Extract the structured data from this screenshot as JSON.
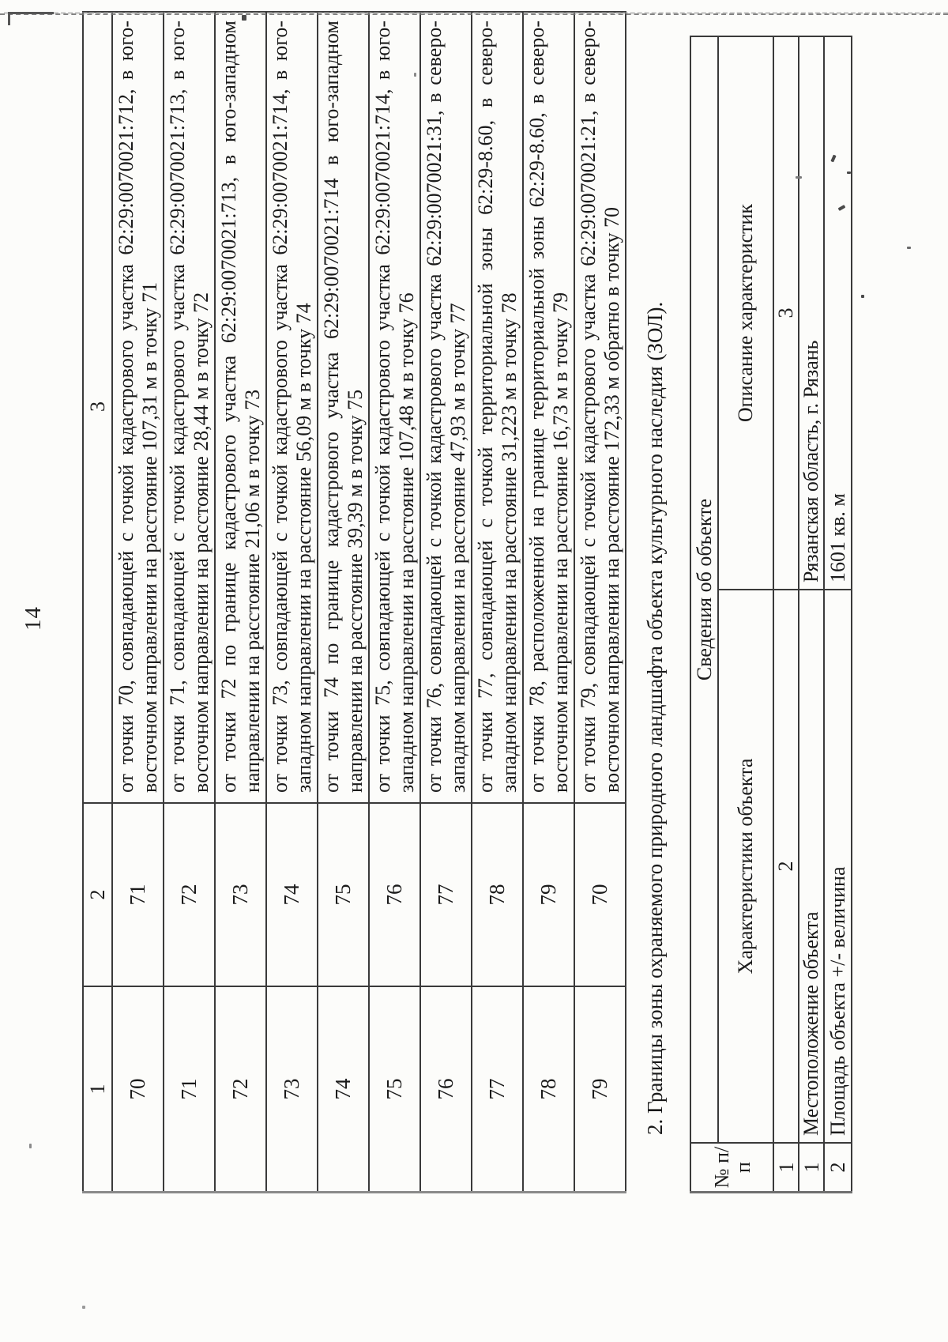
{
  "page": {
    "number": "14"
  },
  "colors": {
    "paper": "#fcfcfa",
    "ink": "#1b1b1b",
    "border": "#3a3a3a"
  },
  "main_table": {
    "headers": [
      "1",
      "2",
      "3"
    ],
    "rows": [
      {
        "point": "70",
        "to": "71",
        "desc": "от точки 70, совпадающей с точкой кадастрового участка 62:29:0070021:712, в юго-восточном направлении на расстояние 107,31 м в точку 71"
      },
      {
        "point": "71",
        "to": "72",
        "desc": "от точки 71, совпадающей с точкой кадастрового участка 62:29:0070021:713, в юго-восточном направлении на расстояние 28,44 м в точку 72"
      },
      {
        "point": "72",
        "to": "73",
        "desc": "от точки 72 по границе кадастрового участка 62:29:0070021:713, в юго-западном направлении на расстояние 21,06 м в точку 73"
      },
      {
        "point": "73",
        "to": "74",
        "desc": "от точки 73, совпадающей с точкой кадастрового участка 62:29:0070021:714, в юго-западном направлении на расстояние 56,09 м в точку 74"
      },
      {
        "point": "74",
        "to": "75",
        "desc": "от точки 74 по границе кадастрового участка 62:29:0070021:714 в юго-западном направлении на расстояние 39,39 м в точку 75"
      },
      {
        "point": "75",
        "to": "76",
        "desc": "от точки 75, совпадающей с точкой кадастрового участка 62:29:0070021:714, в юго-западном направлении на расстояние 107,48 м в точку 76"
      },
      {
        "point": "76",
        "to": "77",
        "desc": "от точки 76, совпадающей с точкой кадастрового участка 62:29:0070021:31, в северо-западном направлении на расстояние 47,93 м в точку 77"
      },
      {
        "point": "77",
        "to": "78",
        "desc": "от точки 77, совпадающей с точкой территориальной зоны 62:29-8.60, в северо-западном направлении на расстояние 31,223 м в точку 78"
      },
      {
        "point": "78",
        "to": "79",
        "desc": "от точки 78, расположенной на границе территориальной зоны 62:29-8.60, в северо-восточном направлении на расстояние 16,73 м в точку 79"
      },
      {
        "point": "79",
        "to": "70",
        "desc": "от точки 79, совпадающей с точкой кадастрового участка 62:29:0070021:21, в северо-восточном направлении на расстояние 172,33 м обратно в точку 70"
      }
    ]
  },
  "section_heading": "2. Границы зоны охраняемого природного ландшафта объекта культурного наследия (ЗОЛ).",
  "info_table": {
    "title": "Сведения об объекте",
    "col1_header": "№ п/п",
    "col2_header": "Характеристики объекта",
    "col3_header": "Описание характеристик",
    "index_row": [
      "1",
      "2",
      "3"
    ],
    "rows": [
      {
        "num": "1",
        "characteristic": "Местоположение объекта",
        "description": "Рязанская область, г. Рязань"
      },
      {
        "num": "2",
        "characteristic": "Площадь объекта +/- величина",
        "description": "1601 кв. м"
      }
    ]
  }
}
